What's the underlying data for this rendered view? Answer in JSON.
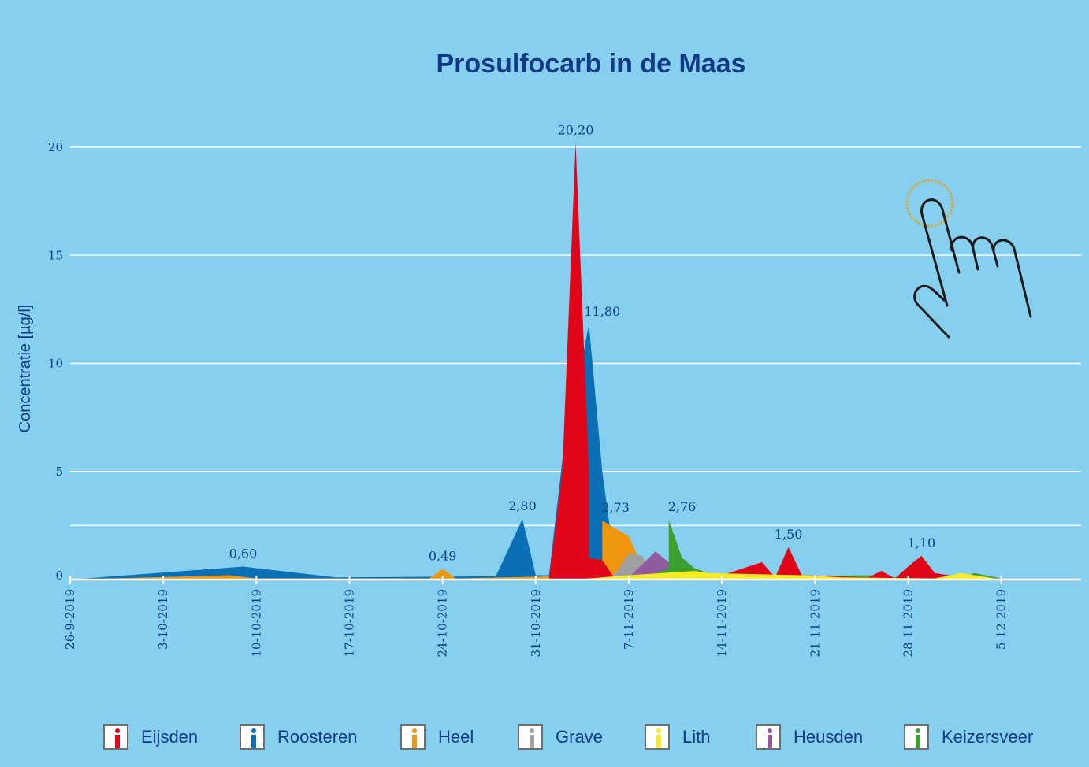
{
  "chart_data": {
    "type": "area",
    "title": "Prosulfocarb in de Maas",
    "ylabel": "Concentratie [µg/l]",
    "xlabel": "",
    "ylim": [
      0,
      21
    ],
    "yticks": [
      0,
      5,
      10,
      15,
      20
    ],
    "x_start": "26-9-2019",
    "x_end": "11-12-2019",
    "xticks": [
      "26-9-2019",
      "3-10-2019",
      "10-10-2019",
      "17-10-2019",
      "24-10-2019",
      "31-10-2019",
      "7-11-2019",
      "14-11-2019",
      "21-11-2019",
      "28-11-2019",
      "5-12-2019"
    ],
    "grid": "horizontal",
    "legend_position": "bottom",
    "series": [
      {
        "name": "Roosteren",
        "color": "#0a6fb4",
        "points": [
          [
            "26-9-2019",
            0
          ],
          [
            "9-10-2019",
            0.6
          ],
          [
            "16-10-2019",
            0.1
          ],
          [
            "28-10-2019",
            0.15
          ],
          [
            "30-10-2019",
            2.8
          ],
          [
            "31-10-2019",
            0.2
          ],
          [
            "1-11-2019",
            0.2
          ],
          [
            "2-11-2019",
            5.5
          ],
          [
            "4-11-2019",
            11.8
          ],
          [
            "5-11-2019",
            5.0
          ],
          [
            "6-11-2019",
            0.5
          ],
          [
            "7-11-2019",
            0
          ]
        ]
      },
      {
        "name": "Heel",
        "color": "#f0960e",
        "points": [
          [
            "26-9-2019",
            0
          ],
          [
            "8-10-2019",
            0.2
          ],
          [
            "10-10-2019",
            0.05
          ],
          [
            "23-10-2019",
            0.05
          ],
          [
            "24-10-2019",
            0.49
          ],
          [
            "25-10-2019",
            0.05
          ],
          [
            "5-11-2019",
            0.2
          ],
          [
            "5-11-2019",
            2.73
          ],
          [
            "7-11-2019",
            2.0
          ],
          [
            "8-11-2019",
            0.6
          ],
          [
            "9-11-2019",
            0
          ]
        ]
      },
      {
        "name": "Grave",
        "color": "#a0a0a0",
        "points": [
          [
            "5-11-2019",
            0
          ],
          [
            "6-11-2019",
            0.3
          ],
          [
            "7-11-2019",
            1.2
          ],
          [
            "8-11-2019",
            1.1
          ],
          [
            "9-11-2019",
            0
          ]
        ]
      },
      {
        "name": "Heusden",
        "color": "#925a9f",
        "points": [
          [
            "7-11-2019",
            0.1
          ],
          [
            "9-11-2019",
            1.3
          ],
          [
            "10-11-2019",
            0.8
          ],
          [
            "11-11-2019",
            0.1
          ],
          [
            "12-11-2019",
            0
          ],
          [
            "21-11-2019",
            0
          ],
          [
            "22-11-2019",
            0.2
          ],
          [
            "25-11-2019",
            0.05
          ]
        ]
      },
      {
        "name": "Keizersveer",
        "color": "#3aa12e",
        "points": [
          [
            "9-11-2019",
            0.3
          ],
          [
            "10-11-2019",
            0.5
          ],
          [
            "10-11-2019",
            2.76
          ],
          [
            "11-11-2019",
            1.0
          ],
          [
            "12-11-2019",
            0.5
          ],
          [
            "13-11-2019",
            0.3
          ],
          [
            "15-11-2019",
            0.1
          ],
          [
            "25-11-2019",
            0.2
          ],
          [
            "27-11-2019",
            0.1
          ],
          [
            "2-12-2019",
            0.1
          ],
          [
            "3-12-2019",
            0.3
          ],
          [
            "5-12-2019",
            0.05
          ]
        ]
      },
      {
        "name": "Eijsden",
        "color": "#e10519",
        "points": [
          [
            "1-11-2019",
            0
          ],
          [
            "2-11-2019",
            5.0
          ],
          [
            "3-11-2019",
            20.2
          ],
          [
            "4-11-2019",
            5.0
          ],
          [
            "4-11-2019",
            1.0
          ],
          [
            "5-11-2019",
            0.9
          ],
          [
            "6-11-2019",
            0
          ],
          [
            "14-11-2019",
            0.2
          ],
          [
            "17-11-2019",
            0.8
          ],
          [
            "18-11-2019",
            0.1
          ],
          [
            "19-11-2019",
            1.5
          ],
          [
            "20-11-2019",
            0.2
          ],
          [
            "25-11-2019",
            0.1
          ],
          [
            "26-11-2019",
            0.4
          ],
          [
            "27-11-2019",
            0.05
          ],
          [
            "28-11-2019",
            0.6
          ],
          [
            "29-11-2019",
            1.1
          ],
          [
            "30-11-2019",
            0.3
          ],
          [
            "2-12-2019",
            0.1
          ],
          [
            "3-12-2019",
            0
          ]
        ]
      },
      {
        "name": "Lith",
        "color": "#f7ec23",
        "points": [
          [
            "3-11-2019",
            0
          ],
          [
            "7-11-2019",
            0.2
          ],
          [
            "12-11-2019",
            0.4
          ],
          [
            "13-11-2019",
            0.3
          ],
          [
            "20-11-2019",
            0.2
          ],
          [
            "23-11-2019",
            0.1
          ],
          [
            "30-11-2019",
            0.05
          ],
          [
            "2-12-2019",
            0.3
          ],
          [
            "4-12-2019",
            0.1
          ],
          [
            "5-12-2019",
            0
          ]
        ]
      }
    ],
    "annotations": [
      {
        "text": "0,60",
        "x": "9-10-2019",
        "y": 0.6,
        "color": "#0a6fb4"
      },
      {
        "text": "0,49",
        "x": "24-10-2019",
        "y": 0.49,
        "color": "#f0960e"
      },
      {
        "text": "2,80",
        "x": "30-10-2019",
        "y": 2.8,
        "color": "#0a6fb4"
      },
      {
        "text": "20,20",
        "x": "3-11-2019",
        "y": 20.2,
        "color": "#e10519"
      },
      {
        "text": "11,80",
        "x": "5-11-2019",
        "y": 11.8,
        "color": "#0a6fb4"
      },
      {
        "text": "2,73",
        "x": "6-11-2019",
        "y": 2.73,
        "color": "#f0960e"
      },
      {
        "text": "2,76",
        "x": "11-11-2019",
        "y": 2.76,
        "color": "#3aa12e"
      },
      {
        "text": "1,50",
        "x": "19-11-2019",
        "y": 1.5,
        "color": "#e10519"
      },
      {
        "text": "1,10",
        "x": "29-11-2019",
        "y": 1.1,
        "color": "#e10519"
      }
    ]
  },
  "legend": [
    {
      "label": "Eijsden",
      "color": "#e10519"
    },
    {
      "label": "Roosteren",
      "color": "#0a6fb4"
    },
    {
      "label": "Heel",
      "color": "#f0960e"
    },
    {
      "label": "Grave",
      "color": "#a0a0a0"
    },
    {
      "label": "Lith",
      "color": "#f7ec23"
    },
    {
      "label": "Heusden",
      "color": "#925a9f"
    },
    {
      "label": "Keizersveer",
      "color": "#3aa12e"
    }
  ],
  "icons": {
    "pointer": "hand-pointer-icon"
  }
}
